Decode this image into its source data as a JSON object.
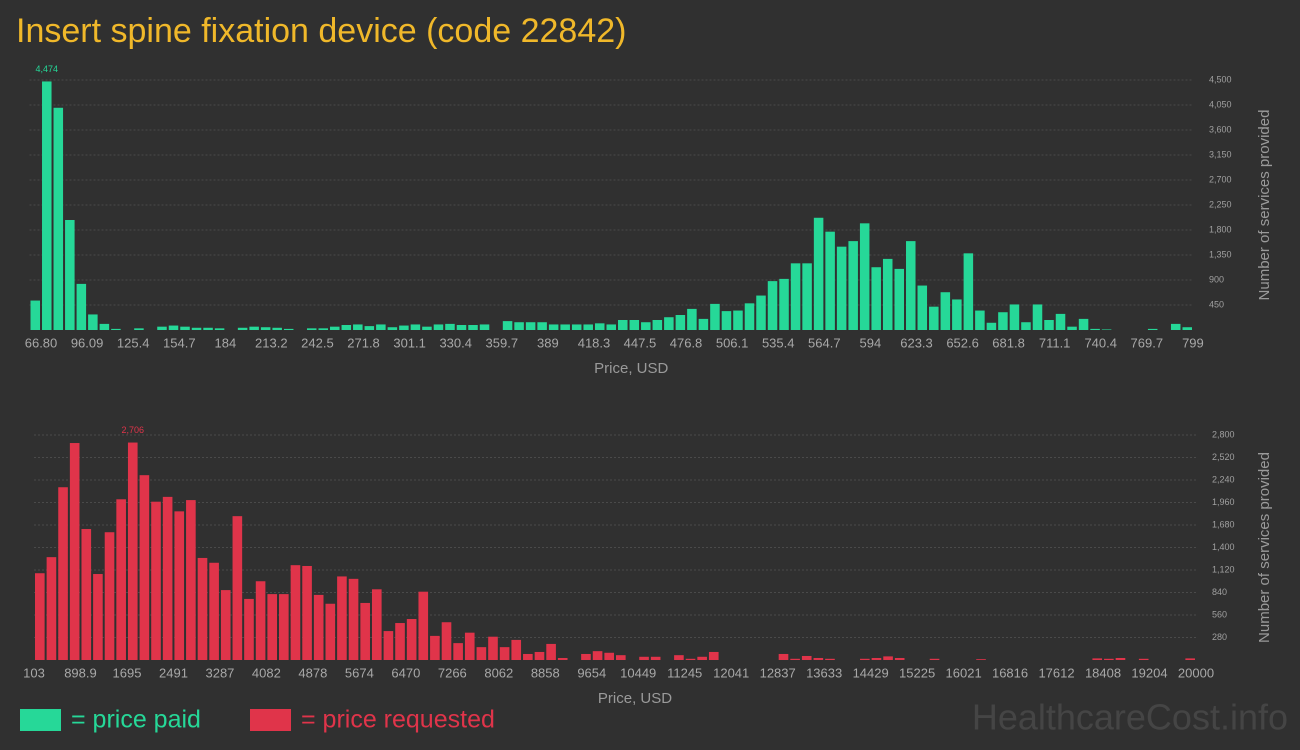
{
  "title": "Insert spine fixation device (code 22842)",
  "watermark": "HealthcareCost.info",
  "chart_data": [
    {
      "type": "histogram",
      "xlabel": "Price, USD",
      "ylabel": "Number of services provided",
      "bins": [
        59.48,
        66.8,
        74.12,
        81.45,
        88.77,
        96.09,
        103.41,
        110.74,
        118.06,
        125.38,
        132.7,
        140.03,
        147.35,
        154.67,
        161.99,
        169.32,
        176.64,
        183.96,
        191.28,
        198.61,
        205.93,
        213.25,
        220.57,
        227.9,
        235.22,
        242.54,
        249.86,
        257.19,
        264.51,
        271.83,
        279.15,
        286.48,
        293.8,
        301.12,
        308.44,
        315.77,
        323.09,
        330.41,
        337.73,
        345.06,
        352.38,
        359.7,
        367.02,
        374.35,
        381.67,
        388.99,
        396.31,
        403.64,
        410.96,
        418.28,
        425.6,
        432.93,
        440.25,
        447.57,
        454.89,
        462.22,
        469.54,
        476.86,
        484.18,
        491.51,
        498.83,
        506.15,
        513.47,
        520.8,
        528.12,
        535.44,
        542.76,
        550.09,
        557.41,
        564.73,
        572.05,
        579.38,
        586.7,
        594.02,
        601.34,
        608.67,
        615.99,
        623.31,
        630.63,
        637.96,
        645.28,
        652.6,
        659.92,
        667.25,
        674.57,
        681.89,
        689.21,
        696.54,
        703.86,
        711.18,
        718.5,
        725.83,
        733.15,
        740.47,
        747.79,
        755.12,
        762.44,
        769.76,
        777.08,
        784.41,
        791.73,
        799.05
      ],
      "series": [
        {
          "name": "= price paid",
          "color": "#26d898",
          "values": [
            530,
            4474,
            4000,
            1980,
            830,
            280,
            110,
            20,
            0,
            30,
            0,
            60,
            80,
            60,
            40,
            40,
            30,
            0,
            40,
            60,
            50,
            40,
            20,
            0,
            30,
            30,
            60,
            90,
            100,
            70,
            100,
            50,
            80,
            100,
            60,
            100,
            110,
            90,
            90,
            100,
            0,
            160,
            140,
            140,
            140,
            100,
            100,
            100,
            100,
            120,
            100,
            180,
            180,
            140,
            180,
            230,
            270,
            380,
            200,
            470,
            340,
            350,
            480,
            620,
            880,
            920,
            1200,
            1200,
            2020,
            1770,
            1500,
            1600,
            1920,
            1130,
            1280,
            1100,
            1600,
            800,
            420,
            680,
            550,
            1380,
            350,
            130,
            320,
            460,
            140,
            460,
            180,
            290,
            60,
            200,
            20,
            10,
            0,
            0,
            0,
            20,
            0,
            110,
            50
          ],
          "value_labels": [
            null,
            "4,474",
            null,
            null,
            null,
            null,
            null,
            null,
            null,
            null,
            null,
            null,
            null,
            null,
            null,
            null,
            null,
            null,
            null,
            null,
            null,
            null,
            null,
            null,
            null,
            null,
            null,
            null,
            null,
            null,
            null,
            null,
            null,
            null,
            null,
            null,
            null,
            null,
            null,
            null,
            null,
            null,
            null,
            null,
            null,
            null,
            null,
            null,
            null,
            null,
            null,
            null,
            null,
            null,
            null,
            null,
            null,
            null,
            null,
            null,
            null,
            null,
            null,
            null,
            null,
            null,
            null,
            null,
            null,
            null,
            null,
            null,
            null,
            null,
            null,
            null,
            null,
            null,
            null,
            null,
            null,
            null,
            null,
            null,
            null,
            null,
            null,
            null,
            null,
            null,
            null,
            null,
            null,
            null,
            null,
            null,
            null,
            null,
            null,
            null,
            null
          ]
        }
      ],
      "xlim": [
        59.48,
        799.05
      ],
      "xticks": [
        {
          "value": 66.8,
          "label": "66.80"
        },
        96.09,
        125.4,
        154.7,
        184,
        213.2,
        242.5,
        271.8,
        301.1,
        330.4,
        359.7,
        389,
        418.3,
        447.5,
        476.8,
        506.1,
        535.4,
        564.7,
        594,
        623.3,
        652.6,
        681.8,
        711.1,
        740.4,
        769.7,
        799
      ],
      "ylim": [
        0,
        4500
      ],
      "yticks": [
        450,
        900,
        {
          "value": 1350,
          "label": "1,350"
        },
        {
          "value": 1800,
          "label": "1,800"
        },
        {
          "value": 2250,
          "label": "2,250"
        },
        {
          "value": 2700,
          "label": "2,700"
        },
        {
          "value": 3150,
          "label": "3,150"
        },
        {
          "value": 3600,
          "label": "3,600"
        },
        {
          "value": 4050,
          "label": "4,050"
        },
        {
          "value": 4500,
          "label": "4,500"
        }
      ],
      "grid": true
    },
    {
      "type": "histogram",
      "xlabel": "Price, USD",
      "ylabel": "Number of services provided",
      "bins": [
        103,
        301.97,
        500.94,
        699.91,
        898.88,
        1097.85,
        1296.82,
        1495.79,
        1694.76,
        1893.73,
        2092.7,
        2291.67,
        2490.64,
        2689.61,
        2888.58,
        3087.55,
        3286.52,
        3485.49,
        3684.46,
        3883.43,
        4082.4,
        4281.37,
        4480.34,
        4679.31,
        4878.28,
        5077.25,
        5276.22,
        5475.19,
        5674.16,
        5873.13,
        6072.1,
        6271.07,
        6470.04,
        6669.01,
        6867.98,
        7066.95,
        7265.92,
        7464.89,
        7663.86,
        7862.83,
        8061.8,
        8260.77,
        8459.74,
        8658.71,
        8857.68,
        9056.65,
        9255.62,
        9454.59,
        9653.56,
        9852.53,
        10051.5,
        10250.47,
        10449.44,
        10648.41,
        10847.38,
        11046.35,
        11245.32,
        11444.29,
        11643.26,
        11842.23,
        12041.2,
        12240.17,
        12439.14,
        12638.11,
        12837.08,
        13036.05,
        13235.02,
        13433.99,
        13632.96,
        13831.93,
        14030.9,
        14229.87,
        14428.84,
        14627.81,
        14826.78,
        15025.75,
        15224.72,
        15423.69,
        15622.66,
        15821.63,
        16020.6,
        16219.57,
        16418.54,
        16617.51,
        16816.48,
        17015.45,
        17214.42,
        17413.39,
        17612.36,
        17811.33,
        18010.3,
        18209.27,
        18408.24,
        18607.21,
        18806.18,
        19005.15,
        19204.12,
        19403.09,
        19602.06,
        19801.03,
        20000
      ],
      "series": [
        {
          "name": "= price requested",
          "color": "#e0344a",
          "values": [
            1080,
            1280,
            2150,
            2700,
            1630,
            1070,
            1590,
            2000,
            2706,
            2300,
            1970,
            2030,
            1850,
            1990,
            1270,
            1210,
            870,
            1790,
            760,
            980,
            820,
            820,
            1180,
            1170,
            810,
            700,
            1040,
            1010,
            710,
            880,
            360,
            460,
            510,
            850,
            300,
            470,
            210,
            340,
            160,
            290,
            160,
            250,
            75,
            100,
            200,
            25,
            0,
            75,
            110,
            90,
            60,
            0,
            40,
            40,
            0,
            60,
            15,
            40,
            100,
            0,
            0,
            0,
            0,
            0,
            75,
            15,
            50,
            25,
            15,
            0,
            0,
            15,
            25,
            45,
            25,
            0,
            0,
            15,
            0,
            0,
            0,
            10,
            0,
            0,
            0,
            0,
            0,
            0,
            0,
            0,
            0,
            20,
            15,
            25,
            0,
            15,
            0,
            0,
            0,
            20
          ],
          "value_labels": [
            null,
            null,
            null,
            null,
            null,
            null,
            null,
            null,
            "2,706",
            null,
            null,
            null,
            null,
            null,
            null,
            null,
            null,
            null,
            null,
            null,
            null,
            null,
            null,
            null,
            null,
            null,
            null,
            null,
            null,
            null,
            null,
            null,
            null,
            null,
            null,
            null,
            null,
            null,
            null,
            null,
            null,
            null,
            null,
            null,
            null,
            null,
            null,
            null,
            null,
            null,
            null,
            null,
            null,
            null,
            null,
            null,
            null,
            null,
            null,
            null,
            null,
            null,
            null,
            null,
            null,
            null,
            null,
            null,
            null,
            null,
            null,
            null,
            null,
            null,
            null,
            null,
            null,
            null,
            null,
            null,
            null,
            null,
            null,
            null,
            null,
            null,
            null,
            null,
            null,
            null,
            null,
            null,
            null,
            null,
            null,
            null,
            null,
            null,
            null,
            null
          ]
        }
      ],
      "xlim": [
        103,
        20000
      ],
      "xticks": [
        103,
        898.9,
        1695,
        2491,
        3287,
        4082,
        4878,
        5674,
        6470,
        7266,
        8062,
        8858,
        9654,
        10449,
        11245,
        12041,
        12837,
        13633,
        14429,
        15225,
        16021,
        16816,
        17612,
        18408,
        19204,
        20000
      ],
      "ylim": [
        0,
        2800
      ],
      "yticks": [
        280,
        560,
        840,
        {
          "value": 1120,
          "label": "1,120"
        },
        {
          "value": 1400,
          "label": "1,400"
        },
        {
          "value": 1680,
          "label": "1,680"
        },
        {
          "value": 1960,
          "label": "1,960"
        },
        {
          "value": 2240,
          "label": "2,240"
        },
        {
          "value": 2520,
          "label": "2,520"
        },
        {
          "value": 2800,
          "label": "2,800"
        }
      ],
      "grid": true
    }
  ]
}
